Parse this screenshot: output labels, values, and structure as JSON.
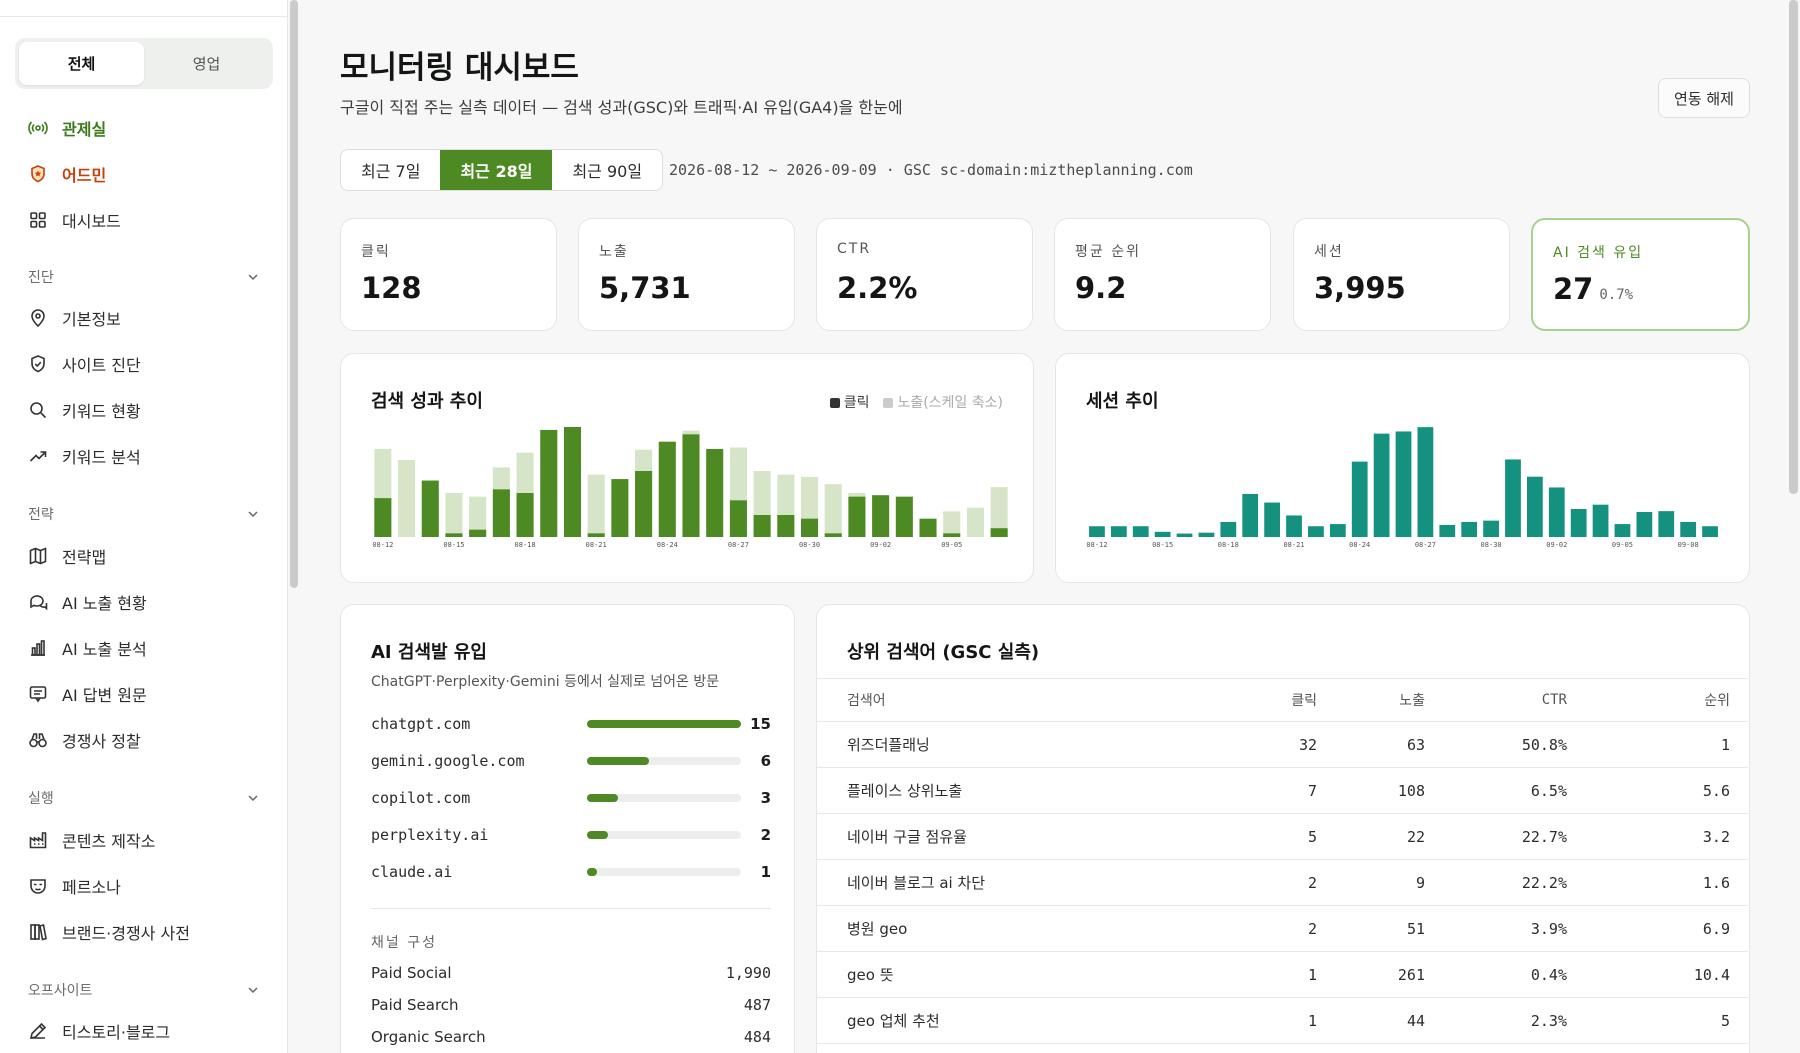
{
  "sidebar": {
    "segments": [
      "전체",
      "영업"
    ],
    "primary": [
      "관제실",
      "어드민",
      "대시보드"
    ],
    "sections": [
      {
        "title": "진단",
        "items": [
          "기본정보",
          "사이트 진단",
          "키워드 현황",
          "키워드 분석"
        ]
      },
      {
        "title": "전략",
        "items": [
          "전략맵",
          "AI 노출 현황",
          "AI 노출 분석",
          "AI 답변 원문",
          "경쟁사 정찰"
        ]
      },
      {
        "title": "실행",
        "items": [
          "콘텐츠 제작소",
          "페르소나",
          "브랜드·경쟁사 사전"
        ]
      },
      {
        "title": "오프사이트",
        "items": [
          "티스토리·블로그"
        ]
      }
    ]
  },
  "header": {
    "title": "모니터링 대시보드",
    "subtitle": "구글이 직접 주는 실측 데이터 — 검색 성과(GSC)와 트래픽·AI 유입(GA4)을 한눈에",
    "disconnect": "연동 해제",
    "ranges": [
      "최근 7일",
      "최근 28일",
      "최근 90일"
    ],
    "active_range": "최근 28일",
    "range_info": "2026-08-12 ~ 2026-09-09 · GSC sc-domain:miztheplanning.com"
  },
  "kpis": [
    {
      "label": "클릭",
      "value": "128"
    },
    {
      "label": "노출",
      "value": "5,731"
    },
    {
      "label": "CTR",
      "value": "2.2%"
    },
    {
      "label": "평균 순위",
      "value": "9.2"
    },
    {
      "label": "세션",
      "value": "3,995"
    },
    {
      "label": "AI 검색 유입",
      "value": "27",
      "sub": "0.7%"
    }
  ],
  "colors": {
    "accent": "#4e8a23",
    "accent_light": "#d6e5c8",
    "teal": "#14917f"
  },
  "chart_data": [
    {
      "type": "bar",
      "title": "검색 성과 추이",
      "legend": [
        "클릭",
        "노출(스케일 축소)"
      ],
      "x": [
        "08-12",
        "08-13",
        "08-14",
        "08-15",
        "08-16",
        "08-17",
        "08-18",
        "08-19",
        "08-20",
        "08-21",
        "08-22",
        "08-23",
        "08-24",
        "08-25",
        "08-26",
        "08-27",
        "08-28",
        "08-29",
        "08-30",
        "08-31",
        "09-01",
        "09-02",
        "09-03",
        "09-04",
        "09-05",
        "09-06",
        "09-07"
      ],
      "tick_labels": [
        "08-12",
        "08-15",
        "08-18",
        "08-21",
        "08-24",
        "08-27",
        "08-30",
        "09-02",
        "09-05"
      ],
      "series": [
        {
          "name": "클릭",
          "values": [
            5.3,
            0,
            7.7,
            0.5,
            1,
            6.5,
            6,
            14.6,
            15,
            0.5,
            7.9,
            9,
            13,
            14,
            12,
            5,
            3,
            3,
            2.5,
            0.5,
            5.5,
            5.7,
            5.5,
            2.5,
            0.5,
            0,
            1.2
          ]
        },
        {
          "name": "노출(스케일 축소)",
          "values": [
            12,
            10.5,
            0,
            6,
            5.5,
            9.5,
            11.5,
            0,
            0,
            8.5,
            0,
            11.9,
            12,
            14.5,
            0,
            12.2,
            9,
            8.5,
            8.2,
            7.2,
            6,
            0,
            0,
            0,
            3.5,
            4,
            6.8
          ]
        }
      ],
      "ylim": [
        0,
        15
      ]
    },
    {
      "type": "bar",
      "title": "세션 추이",
      "x": [
        "08-12",
        "08-13",
        "08-14",
        "08-15",
        "08-16",
        "08-17",
        "08-18",
        "08-19",
        "08-20",
        "08-21",
        "08-22",
        "08-23",
        "08-24",
        "08-25",
        "08-26",
        "08-27",
        "08-28",
        "08-29",
        "08-30",
        "08-31",
        "09-01",
        "09-02",
        "09-03",
        "09-04",
        "09-05",
        "09-06",
        "09-07",
        "09-08",
        "09-09"
      ],
      "tick_labels": [
        "08-12",
        "08-15",
        "08-18",
        "08-21",
        "08-24",
        "08-27",
        "08-30",
        "09-02",
        "09-05",
        "09-08"
      ],
      "values": [
        25,
        25,
        25,
        12,
        8,
        10,
        35,
        100,
        80,
        50,
        25,
        30,
        175,
        240,
        245,
        255,
        28,
        35,
        38,
        180,
        140,
        115,
        65,
        75,
        30,
        58,
        60,
        35,
        25
      ],
      "ylim": [
        0,
        260
      ]
    }
  ],
  "ai_referrals": {
    "title": "AI 검색발 유입",
    "subtitle": "ChatGPT·Perplexity·Gemini 등에서 실제로 넘어온 방문",
    "items": [
      {
        "name": "chatgpt.com",
        "count": "15",
        "value": 15
      },
      {
        "name": "gemini.google.com",
        "count": "6",
        "value": 6
      },
      {
        "name": "copilot.com",
        "count": "3",
        "value": 3
      },
      {
        "name": "perplexity.ai",
        "count": "2",
        "value": 2
      },
      {
        "name": "claude.ai",
        "count": "1",
        "value": 1
      }
    ],
    "channels_label": "채널 구성",
    "channels": [
      {
        "name": "Paid Social",
        "value": "1,990"
      },
      {
        "name": "Paid Search",
        "value": "487"
      },
      {
        "name": "Organic Search",
        "value": "484"
      }
    ]
  },
  "top_queries": {
    "title": "상위 검색어 (GSC 실측)",
    "headers": [
      "검색어",
      "클릭",
      "노출",
      "CTR",
      "순위"
    ],
    "rows": [
      [
        "위즈더플래닝",
        "32",
        "63",
        "50.8%",
        "1"
      ],
      [
        "플레이스 상위노출",
        "7",
        "108",
        "6.5%",
        "5.6"
      ],
      [
        "네이버 구글 점유율",
        "5",
        "22",
        "22.7%",
        "3.2"
      ],
      [
        "네이버 블로그 ai 차단",
        "2",
        "9",
        "22.2%",
        "1.6"
      ],
      [
        "병원 geo",
        "2",
        "51",
        "3.9%",
        "6.9"
      ],
      [
        "geo 뜻",
        "1",
        "261",
        "0.4%",
        "10.4"
      ],
      [
        "geo 업체 추천",
        "1",
        "44",
        "2.3%",
        "5"
      ]
    ]
  }
}
